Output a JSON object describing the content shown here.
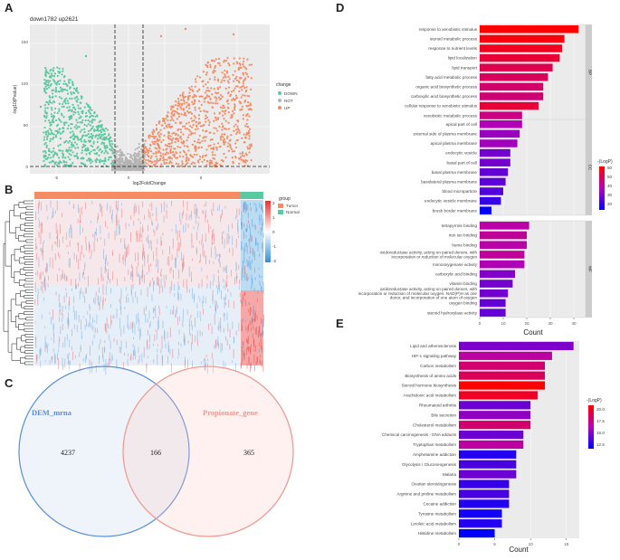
{
  "panels": {
    "a": {
      "label": "A",
      "title": "down1782 up2621",
      "xlabel": "log2FoldChange",
      "ylabel": "-log10(Pvalue)",
      "legend_title": "change",
      "legend": [
        {
          "name": "DOWN",
          "color": "#5ac8a0"
        },
        {
          "name": "NOT",
          "color": "#b4b4b4"
        },
        {
          "name": "UP",
          "color": "#f58c64"
        }
      ],
      "xticks": [
        "-5",
        "0",
        "5"
      ],
      "yticks": [
        "0",
        "50",
        "100",
        "150"
      ]
    },
    "b": {
      "label": "B",
      "legend_title": "group",
      "groups": [
        {
          "name": "Tumor",
          "color": "#f58c64"
        },
        {
          "name": "Normal",
          "color": "#5ac8a0"
        }
      ],
      "scale_ticks": [
        "2",
        "1",
        "0",
        "-1",
        "-2"
      ]
    },
    "c": {
      "label": "C",
      "left_name": "DEM_mrna",
      "right_name": "Propionate_gene",
      "left_only": "4237",
      "both": "166",
      "right_only": "365"
    },
    "d": {
      "label": "D",
      "xlabel": "Count",
      "xticks": [
        "0",
        "10",
        "20",
        "30",
        "40"
      ],
      "legend_title": "-(LogP)",
      "legend_ticks": [
        "60",
        "50",
        "40",
        "30",
        "20"
      ],
      "facets": [
        "BP",
        "CC",
        "MF"
      ],
      "xmax": 45,
      "chart_data": {
        "type": "bar",
        "xlabel": "Count",
        "facets": [
          {
            "name": "BP",
            "terms": [
              {
                "term": "response to xenobiotic stimulus",
                "count": 42,
                "logp": 62
              },
              {
                "term": "steroid metabolic process",
                "count": 36,
                "logp": 60
              },
              {
                "term": "response to nutrient levels",
                "count": 35,
                "logp": 58
              },
              {
                "term": "lipid localization",
                "count": 34,
                "logp": 55
              },
              {
                "term": "lipid transport",
                "count": 31,
                "logp": 52
              },
              {
                "term": "fatty acid metabolic process",
                "count": 29,
                "logp": 50
              },
              {
                "term": "organic acid biosynthetic process",
                "count": 27,
                "logp": 48
              },
              {
                "term": "carboxylic acid biosynthetic process",
                "count": 27,
                "logp": 47
              },
              {
                "term": "cellular response to xenobiotic stimulus",
                "count": 25,
                "logp": 55
              },
              {
                "term": "xenobiotic metabolic process",
                "count": 18,
                "logp": 45
              }
            ]
          },
          {
            "name": "CC",
            "terms": [
              {
                "term": "apical part of cell",
                "count": 18,
                "logp": 38
              },
              {
                "term": "external side of plasma membrane",
                "count": 17,
                "logp": 35
              },
              {
                "term": "apical plasma membrane",
                "count": 16,
                "logp": 36
              },
              {
                "term": "endocytic vesicle",
                "count": 13,
                "logp": 30
              },
              {
                "term": "basal part of cell",
                "count": 13,
                "logp": 30
              },
              {
                "term": "basal plasma membrane",
                "count": 12,
                "logp": 28
              },
              {
                "term": "basolateral plasma membrane",
                "count": 11,
                "logp": 27
              },
              {
                "term": "blood microparticle",
                "count": 10,
                "logp": 26
              },
              {
                "term": "endocytic vesicle membrane",
                "count": 9,
                "logp": 22
              },
              {
                "term": "brush border membrane",
                "count": 5,
                "logp": 15
              }
            ]
          },
          {
            "name": "MF",
            "terms": [
              {
                "term": "tetrapyrrole binding",
                "count": 21,
                "logp": 40
              },
              {
                "term": "iron ion binding",
                "count": 20,
                "logp": 42
              },
              {
                "term": "heme binding",
                "count": 20,
                "logp": 40
              },
              {
                "term": "oxidoreductase activity, acting on paired donors, with incorporation or reduction of molecular oxygen",
                "count": 19,
                "logp": 42
              },
              {
                "term": "monooxygenase activity",
                "count": 19,
                "logp": 38
              },
              {
                "term": "carboxylic acid binding",
                "count": 15,
                "logp": 32
              },
              {
                "term": "vitamin binding",
                "count": 14,
                "logp": 30
              },
              {
                "term": "oxidoreductase activity, acting on paired donors, with incorporation or reduction of molecular oxygen, NAD(P)H as one donor, and incorporation of one atom of oxygen",
                "count": 12,
                "logp": 30
              },
              {
                "term": "oxygen binding",
                "count": 11,
                "logp": 28
              },
              {
                "term": "steroid hydroxylase activity",
                "count": 11,
                "logp": 28
              }
            ]
          }
        ]
      }
    },
    "e": {
      "label": "E",
      "xlabel": "Count",
      "xticks": [
        "0",
        "5",
        "10",
        "15"
      ],
      "legend_title": "-(LogP)",
      "legend_ticks": [
        "20.0",
        "17.5",
        "15.0",
        "12.5"
      ],
      "xmax": 16,
      "chart_data": {
        "type": "bar",
        "xlabel": "Count",
        "terms": [
          {
            "term": "Lipid and atherosclerosis",
            "count": 16,
            "logp": 14
          },
          {
            "term": "HIF-1 signaling pathway",
            "count": 13,
            "logp": 16
          },
          {
            "term": "Carbon metabolism",
            "count": 12,
            "logp": 17.5
          },
          {
            "term": "Biosynthesis of amino acids",
            "count": 12,
            "logp": 18
          },
          {
            "term": "Steroid hormone biosynthesis",
            "count": 12,
            "logp": 20.5
          },
          {
            "term": "Arachidonic acid metabolism",
            "count": 11,
            "logp": 19.5
          },
          {
            "term": "Rheumatoid arthritis",
            "count": 10,
            "logp": 13.5
          },
          {
            "term": "Bile secretion",
            "count": 10,
            "logp": 14.5
          },
          {
            "term": "Cholesterol metabolism",
            "count": 10,
            "logp": 17.5
          },
          {
            "term": "Chemical carcinogenesis - DNA adducts",
            "count": 9,
            "logp": 13.5
          },
          {
            "term": "Tryptophan metabolism",
            "count": 9,
            "logp": 16
          },
          {
            "term": "Amphetamine addiction",
            "count": 8,
            "logp": 11.5
          },
          {
            "term": "Glycolysis / Gluconeogenesis",
            "count": 8,
            "logp": 12.5
          },
          {
            "term": "Malaria",
            "count": 8,
            "logp": 13.5
          },
          {
            "term": "Ovarian steroidogenesis",
            "count": 7,
            "logp": 12
          },
          {
            "term": "Arginine and proline metabolism",
            "count": 7,
            "logp": 12.5
          },
          {
            "term": "Cocaine addiction",
            "count": 7,
            "logp": 11.5
          },
          {
            "term": "Tyrosine metabolism",
            "count": 6,
            "logp": 11
          },
          {
            "term": "Linoleic acid metabolism",
            "count": 6,
            "logp": 11.5
          },
          {
            "term": "Histidine metabolism",
            "count": 5,
            "logp": 10.5
          }
        ]
      }
    }
  }
}
